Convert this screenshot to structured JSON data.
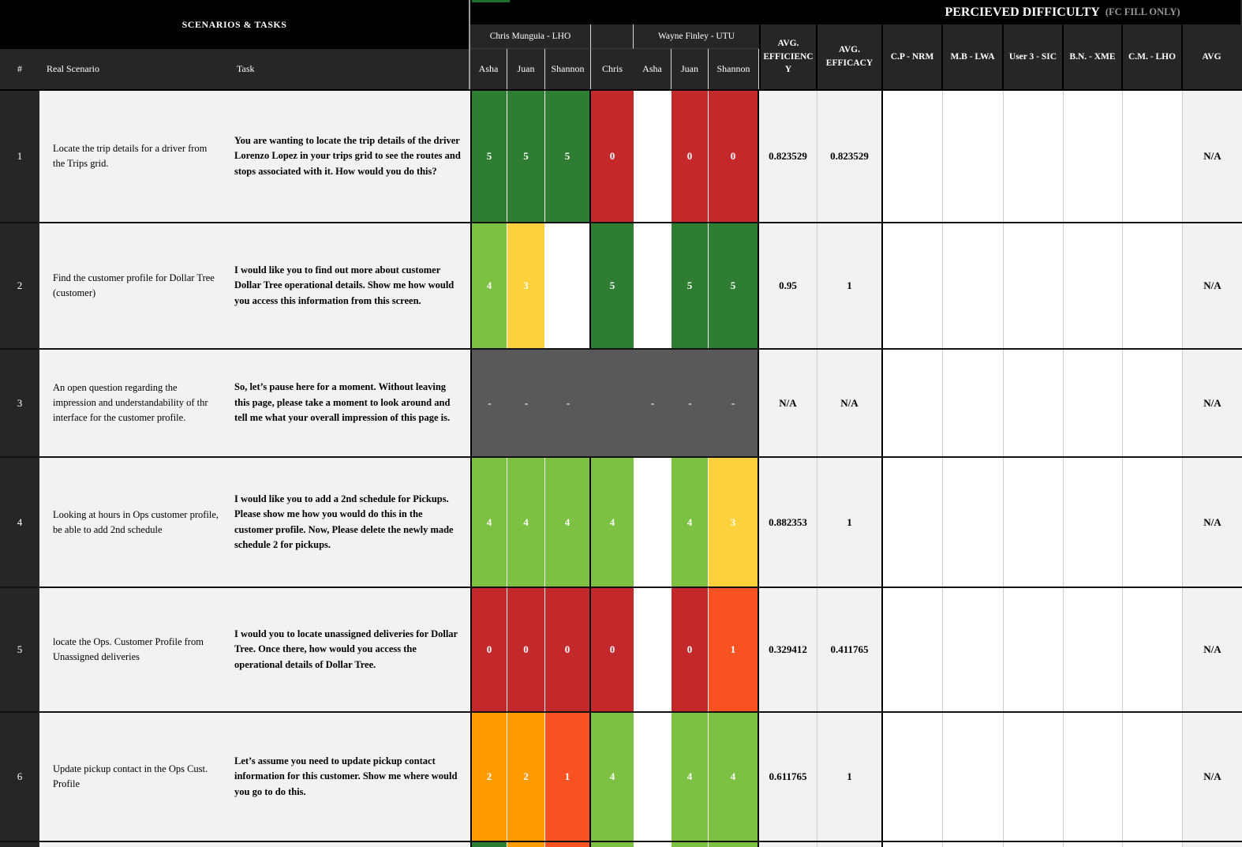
{
  "titles": {
    "scenarios_tasks": "SCENARIOS & TASKS",
    "perceived_difficulty": "PERCIEVED DIFFICULTY",
    "fc_fill_only": "(FC FILL ONLY)"
  },
  "columns": {
    "num": "#",
    "scenario": "Real Scenario",
    "task": "Task",
    "group1": "Chris Munguia - LHO",
    "group2": "Wayne Finley - UTU",
    "raters": [
      "Asha",
      "Juan",
      "Shannon",
      "Chris",
      "Asha",
      "Juan",
      "Shannon"
    ],
    "avg_efficiency": "AVG. EFFICIENCY",
    "avg_efficacy": "AVG. EFFICACY",
    "difficulty": [
      "C.P - NRM",
      "M.B - LWA",
      "User 3 - SIC",
      "B.N. - XME",
      "C.M. - LHO"
    ],
    "avg": "AVG"
  },
  "palette": {
    "g5": "#2e7d32",
    "g4": "#7cc142",
    "y3": "#fdd13c",
    "o2": "#ff9a00",
    "o1": "#f95222",
    "r0": "#c3292b",
    "blank": "#ffffff",
    "na_gray": "#595959"
  },
  "rows": [
    {
      "num": "1",
      "scenario": "Locate the trip details for a driver from the Trips grid.",
      "task": "You are wanting to locate the trip details of the driver Lorenzo Lopez in your trips grid to see the routes and stops associated with it. How would you do this?",
      "scores": [
        [
          "5",
          "g5"
        ],
        [
          "5",
          "g5"
        ],
        [
          "5",
          "g5"
        ],
        [
          "0",
          "r0"
        ],
        [
          "",
          "blank"
        ],
        [
          "0",
          "r0"
        ],
        [
          "0",
          "r0"
        ]
      ],
      "avg_efficiency": "0.823529",
      "avg_efficacy": "0.823529",
      "avg": "N/A"
    },
    {
      "num": "2",
      "scenario": "Find the customer profile for Dollar Tree (customer)",
      "task": "I would like you to find out more about customer Dollar Tree operational details. Show me how would you access this information from this screen.",
      "scores": [
        [
          "4",
          "g4"
        ],
        [
          "3",
          "y3"
        ],
        [
          "",
          "blank"
        ],
        [
          "5",
          "g5"
        ],
        [
          "",
          "blank"
        ],
        [
          "5",
          "g5"
        ],
        [
          "5",
          "g5"
        ]
      ],
      "avg_efficiency": "0.95",
      "avg_efficacy": "1",
      "avg": "N/A"
    },
    {
      "num": "3",
      "scenario": "An open question regarding the impression and understandability of thr interface for the customer profile.",
      "task": "So, let’s pause here for a moment. Without leaving this page, please take a moment to look around and tell me what your overall impression of this page is.",
      "merged": true,
      "dashes": [
        "-",
        "-",
        "-",
        "",
        "-",
        "-",
        "-"
      ],
      "avg_efficiency": "N/A",
      "avg_efficacy": "N/A",
      "avg": "N/A"
    },
    {
      "num": "4",
      "scenario": "Looking at hours in Ops customer profile, be able to add 2nd schedule",
      "task": "I would like you to add a 2nd schedule for Pickups. Please show me how you would do this in the customer profile. Now, Please delete the newly made schedule 2 for pickups.",
      "scores": [
        [
          "4",
          "g4"
        ],
        [
          "4",
          "g4"
        ],
        [
          "4",
          "g4"
        ],
        [
          "4",
          "g4"
        ],
        [
          "",
          "blank"
        ],
        [
          "4",
          "g4"
        ],
        [
          "3",
          "y3"
        ]
      ],
      "avg_efficiency": "0.882353",
      "avg_efficacy": "1",
      "avg": "N/A"
    },
    {
      "num": "5",
      "scenario": "locate the Ops. Customer Profile from Unassigned deliveries",
      "task": "I would you to locate unassigned deliveries for Dollar Tree. Once there, how would you access the operational details of Dollar Tree.",
      "scores": [
        [
          "0",
          "r0"
        ],
        [
          "0",
          "r0"
        ],
        [
          "0",
          "r0"
        ],
        [
          "0",
          "r0"
        ],
        [
          "",
          "blank"
        ],
        [
          "0",
          "r0"
        ],
        [
          "1",
          "o1"
        ]
      ],
      "avg_efficiency": "0.329412",
      "avg_efficacy": "0.411765",
      "avg": "N/A"
    },
    {
      "num": "6",
      "scenario": "Update pickup contact in the Ops Cust. Profile",
      "task": "Let’s assume you need to update pickup contact information for this customer. Show me where would you go to do this.",
      "scores": [
        [
          "2",
          "o2"
        ],
        [
          "2",
          "o2"
        ],
        [
          "1",
          "o1"
        ],
        [
          "4",
          "g4"
        ],
        [
          "",
          "blank"
        ],
        [
          "4",
          "g4"
        ],
        [
          "4",
          "g4"
        ]
      ],
      "avg_efficiency": "0.611765",
      "avg_efficacy": "1",
      "avg": "N/A"
    }
  ],
  "partial_row": [
    "g5",
    "o2",
    "o1",
    "g4",
    "blank",
    "g4",
    "g4"
  ]
}
